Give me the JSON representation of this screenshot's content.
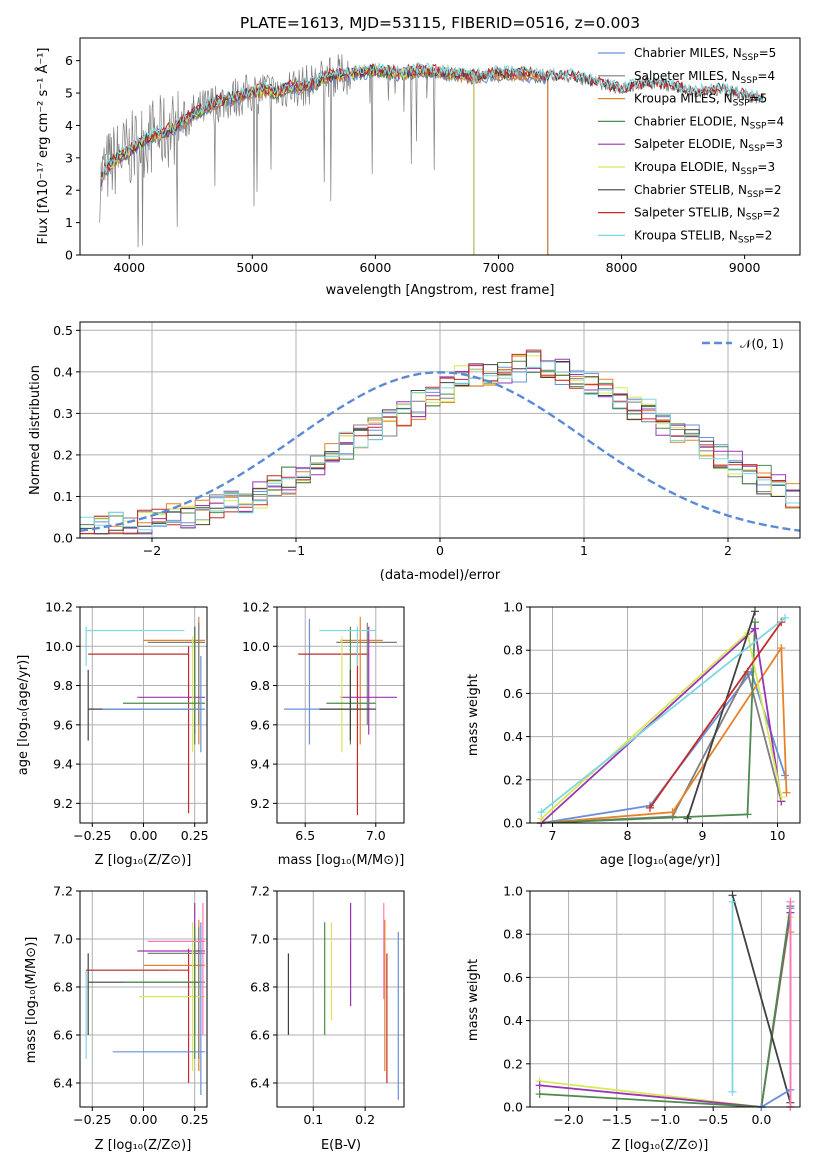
{
  "title": "PLATE=1613, MJD=53115, FIBERID=0516, z=0.003",
  "colors": [
    "#6a8fdb",
    "#7f7f7f",
    "#e8822a",
    "#4d8a4d",
    "#9b35b5",
    "#d8e85a",
    "#404040",
    "#c62a2a",
    "#7fd7e0"
  ],
  "spectrum": {
    "ylabel": "Flux [fλ10⁻¹⁷ erg cm⁻² s⁻¹ Å⁻¹]",
    "xlabel": "wavelength [Angstrom, rest frame]",
    "xlim": [
      3600,
      9450
    ],
    "ylim": [
      0,
      6.7
    ],
    "xticks": [
      "4000",
      "5000",
      "6000",
      "7000",
      "8000",
      "9000"
    ],
    "yticks": [
      "0",
      "1",
      "2",
      "3",
      "4",
      "5",
      "6"
    ],
    "legend": [
      "Chabrier MILES, N_SSP=5",
      "Salpeter MILES, N_SSP=4",
      "Kroupa MILES, N_SSP=5",
      "Chabrier ELODIE, N_SSP=4",
      "Salpeter ELODIE, N_SSP=3",
      "Kroupa ELODIE, N_SSP=3",
      "Chabrier STELIB, N_SSP=2",
      "Salpeter STELIB, N_SSP=2",
      "Kroupa STELIB, N_SSP=2"
    ]
  },
  "residuals": {
    "xlabel": "(data-model)/error",
    "ylabel": "Normed distribution",
    "legend": "𝒩(0, 1)",
    "xlim": [
      -2.5,
      2.5
    ],
    "ylim": [
      0,
      0.52
    ],
    "xticks": [
      "−2",
      "−1",
      "0",
      "1",
      "2"
    ],
    "yticks": [
      "0.0",
      "0.1",
      "0.2",
      "0.3",
      "0.4",
      "0.5"
    ]
  },
  "panels": {
    "age_vs_Z": {
      "xlabel": "Z [log₁₀(Z/Z⊙)]",
      "ylabel": "age [log₁₀(age/yr)]",
      "xticks": [
        "−0.25",
        "0.00",
        "0.25"
      ],
      "yticks": [
        "9.2",
        "9.4",
        "9.6",
        "9.8",
        "10.0",
        "10.2"
      ]
    },
    "age_vs_mass": {
      "xlabel": "mass [log₁₀(M/M⊙)]",
      "xticks": [
        "6.5",
        "7.0"
      ],
      "yticks": [
        "9.2",
        "9.4",
        "9.6",
        "9.8",
        "10.0",
        "10.2"
      ]
    },
    "mw_vs_age": {
      "xlabel": "age [log₁₀(age/yr)]",
      "ylabel": "mass weight",
      "xticks": [
        "7",
        "8",
        "9",
        "10"
      ],
      "yticks": [
        "0.0",
        "0.2",
        "0.4",
        "0.6",
        "0.8",
        "1.0"
      ]
    },
    "mass_vs_Z": {
      "xlabel": "Z [log₁₀(Z/Z⊙)]",
      "ylabel": "mass [log₁₀(M/M⊙)]",
      "xticks": [
        "−0.25",
        "0.00",
        "0.25"
      ],
      "yticks": [
        "6.4",
        "6.6",
        "6.8",
        "7.0",
        "7.2"
      ]
    },
    "mass_vs_ebv": {
      "xlabel": "E(B-V)",
      "xticks": [
        "0.1",
        "0.2"
      ],
      "yticks": [
        "6.4",
        "6.6",
        "6.8",
        "7.0",
        "7.2"
      ]
    },
    "mw_vs_Z": {
      "xlabel": "Z [log₁₀(Z/Z⊙)]",
      "ylabel": "mass weight",
      "xticks": [
        "−2.0",
        "−1.5",
        "−1.0",
        "−0.5",
        "0.0"
      ],
      "yticks": [
        "0.0",
        "0.2",
        "0.4",
        "0.6",
        "0.8",
        "1.0"
      ]
    }
  },
  "chart_data": [
    {
      "type": "line",
      "title": "PLATE=1613, MJD=53115, FIBERID=0516, z=0.003",
      "xlabel": "wavelength [Angstrom, rest frame]",
      "ylabel": "Flux [fλ10⁻¹⁷ erg cm⁻² s⁻¹ Å⁻¹]",
      "xlim": [
        3600,
        9450
      ],
      "ylim": [
        0,
        6.7
      ],
      "legend_position": "right",
      "continuum": {
        "x": [
          3760,
          3800,
          3900,
          4000,
          4100,
          4200,
          4300,
          4400,
          4500,
          4600,
          4700,
          4800,
          4900,
          5000,
          5100,
          5200,
          5300,
          5400,
          5500,
          5600,
          5800,
          6000,
          6200,
          6400,
          6600,
          6800,
          7000,
          7200,
          7400,
          7600,
          7800,
          8000,
          8200,
          8400,
          8600,
          8800,
          9000,
          9150
        ],
        "y": [
          2.2,
          2.6,
          3.0,
          3.2,
          3.5,
          3.7,
          3.8,
          4.0,
          4.3,
          4.5,
          4.7,
          4.8,
          4.9,
          5.0,
          5.1,
          5.0,
          5.2,
          5.2,
          5.3,
          5.5,
          5.6,
          5.7,
          5.6,
          5.7,
          5.6,
          5.5,
          5.6,
          5.6,
          5.5,
          5.5,
          5.3,
          5.1,
          5.3,
          5.2,
          5.0,
          5.1,
          4.9,
          4.8
        ]
      },
      "series": [
        {
          "name": "Chabrier MILES, N_SSP=5",
          "color": "#6a8fdb",
          "xmax": 7400
        },
        {
          "name": "Salpeter MILES, N_SSP=4",
          "color": "#7f7f7f",
          "xmax": 7400
        },
        {
          "name": "Kroupa MILES, N_SSP=5",
          "color": "#e8822a",
          "xmax": 7400
        },
        {
          "name": "Chabrier ELODIE, N_SSP=4",
          "color": "#4d8a4d",
          "xmax": 6800
        },
        {
          "name": "Salpeter ELODIE, N_SSP=3",
          "color": "#9b35b5",
          "xmax": 6800
        },
        {
          "name": "Kroupa ELODIE, N_SSP=3",
          "color": "#d8e85a",
          "xmax": 6800
        },
        {
          "name": "Chabrier STELIB, N_SSP=2",
          "color": "#404040",
          "xmax": 9150
        },
        {
          "name": "Salpeter STELIB, N_SSP=2",
          "color": "#c62a2a",
          "xmax": 9150
        },
        {
          "name": "Kroupa STELIB, N_SSP=2",
          "color": "#7fd7e0",
          "xmax": 9150
        }
      ]
    },
    {
      "type": "line",
      "xlabel": "(data-model)/error",
      "ylabel": "Normed distribution",
      "xlim": [
        -2.5,
        2.5
      ],
      "ylim": [
        0,
        0.52
      ],
      "bin_width": 0.1,
      "gaussian": {
        "name": "𝒩(0, 1)",
        "mean": 0,
        "sigma": 1,
        "color": "#5b8bd6"
      },
      "hist_base": [
        0.02,
        0.02,
        0.025,
        0.03,
        0.035,
        0.04,
        0.045,
        0.05,
        0.055,
        0.06,
        0.07,
        0.08,
        0.09,
        0.1,
        0.12,
        0.14,
        0.16,
        0.18,
        0.2,
        0.22,
        0.24,
        0.26,
        0.28,
        0.3,
        0.32,
        0.34,
        0.36,
        0.38,
        0.39,
        0.4,
        0.4,
        0.41,
        0.42,
        0.41,
        0.4,
        0.39,
        0.38,
        0.36,
        0.34,
        0.32,
        0.3,
        0.28,
        0.26,
        0.24,
        0.22,
        0.2,
        0.18,
        0.16,
        0.14,
        0.12,
        0.1,
        0.09,
        0.08,
        0.07,
        0.06,
        0.055,
        0.05,
        0.045,
        0.04,
        0.035,
        0.03,
        0.025,
        0.02
      ],
      "hist_start": -2.6
    },
    {
      "type": "scatter",
      "xlabel": "Z [log₁₀(Z/Z⊙)]",
      "ylabel": "age [log₁₀(age/yr)]",
      "xlim": [
        -0.31,
        0.31
      ],
      "ylim": [
        9.1,
        10.2
      ],
      "errorbars": [
        {
          "color": "#7fd7e0",
          "x": -0.28,
          "y": 10.08,
          "xlo": -0.28,
          "xhi": 0.2,
          "ylo": 9.9,
          "yhi": 10.1
        },
        {
          "color": "#404040",
          "x": -0.27,
          "y": 9.68,
          "xlo": -0.27,
          "xhi": 0.27,
          "ylo": 9.52,
          "yhi": 9.88
        },
        {
          "color": "#c62a2a",
          "x": 0.22,
          "y": 9.96,
          "xlo": -0.27,
          "xhi": 0.22,
          "ylo": 9.15,
          "yhi": 10.0
        },
        {
          "color": "#e8822a",
          "x": 0.27,
          "y": 10.03,
          "xlo": 0.0,
          "xhi": 0.3,
          "ylo": 9.5,
          "yhi": 10.15
        },
        {
          "color": "#7f7f7f",
          "x": 0.27,
          "y": 10.02,
          "xlo": 0.02,
          "xhi": 0.3,
          "ylo": 9.6,
          "yhi": 10.12
        },
        {
          "color": "#9b35b5",
          "x": 0.25,
          "y": 9.74,
          "xlo": -0.03,
          "xhi": 0.3,
          "ylo": 9.55,
          "yhi": 10.1
        },
        {
          "color": "#d8e85a",
          "x": 0.24,
          "y": 9.68,
          "xlo": -0.02,
          "xhi": 0.3,
          "ylo": 9.46,
          "yhi": 10.05
        },
        {
          "color": "#4d8a4d",
          "x": 0.25,
          "y": 9.71,
          "xlo": -0.1,
          "xhi": 0.3,
          "ylo": 9.5,
          "yhi": 10.1
        },
        {
          "color": "#6a8fdb",
          "x": 0.28,
          "y": 9.68,
          "xlo": -0.2,
          "xhi": 0.3,
          "ylo": 9.46,
          "yhi": 9.95
        }
      ]
    },
    {
      "type": "scatter",
      "xlabel": "mass [log₁₀(M/M⊙)]",
      "xlim": [
        6.3,
        7.2
      ],
      "ylim": [
        9.1,
        10.2
      ],
      "errorbars": [
        {
          "color": "#6a8fdb",
          "x": 6.53,
          "y": 9.68,
          "xlo": 6.35,
          "xhi": 6.8,
          "ylo": 9.5,
          "yhi": 10.14
        },
        {
          "color": "#c62a2a",
          "x": 6.87,
          "y": 9.96,
          "xlo": 6.45,
          "xhi": 6.95,
          "ylo": 9.14,
          "yhi": 10.0
        },
        {
          "color": "#e8822a",
          "x": 6.89,
          "y": 10.03,
          "xlo": 6.75,
          "xhi": 7.05,
          "ylo": 9.5,
          "yhi": 10.15
        },
        {
          "color": "#7f7f7f",
          "x": 6.94,
          "y": 10.02,
          "xlo": 6.72,
          "xhi": 7.15,
          "ylo": 9.6,
          "yhi": 10.12
        },
        {
          "color": "#9b35b5",
          "x": 6.95,
          "y": 9.74,
          "xlo": 6.75,
          "xhi": 7.15,
          "ylo": 9.55,
          "yhi": 10.1
        },
        {
          "color": "#d8e85a",
          "x": 6.76,
          "y": 9.68,
          "xlo": 6.65,
          "xhi": 6.95,
          "ylo": 9.46,
          "yhi": 10.05
        },
        {
          "color": "#4d8a4d",
          "x": 6.82,
          "y": 9.71,
          "xlo": 6.65,
          "xhi": 7.0,
          "ylo": 9.5,
          "yhi": 10.1
        },
        {
          "color": "#404040",
          "x": 6.82,
          "y": 9.68,
          "xlo": 6.6,
          "xhi": 7.0,
          "ylo": 9.52,
          "yhi": 9.88
        },
        {
          "color": "#7fd7e0",
          "x": 6.87,
          "y": 10.08,
          "xlo": 6.6,
          "xhi": 7.0,
          "ylo": 9.9,
          "yhi": 10.1
        }
      ]
    },
    {
      "type": "line",
      "xlabel": "age [log₁₀(age/yr)]",
      "ylabel": "mass weight",
      "xlim": [
        6.7,
        10.3
      ],
      "ylim": [
        0,
        1.0
      ],
      "series": [
        {
          "color": "#6a8fdb",
          "x": [
            6.85,
            8.3,
            9.65,
            10.1
          ],
          "y": [
            0.0,
            0.08,
            0.7,
            0.22
          ]
        },
        {
          "color": "#7f7f7f",
          "x": [
            6.85,
            8.6,
            9.6,
            10.05
          ],
          "y": [
            0.0,
            0.03,
            0.7,
            0.1
          ]
        },
        {
          "color": "#e8822a",
          "x": [
            6.85,
            8.6,
            10.05,
            10.12
          ],
          "y": [
            0.0,
            0.05,
            0.81,
            0.14
          ]
        },
        {
          "color": "#4d8a4d",
          "x": [
            6.85,
            9.6,
            9.7
          ],
          "y": [
            0.0,
            0.04,
            0.93
          ]
        },
        {
          "color": "#9b35b5",
          "x": [
            6.85,
            9.7,
            10.05
          ],
          "y": [
            0.0,
            0.9,
            0.1
          ]
        },
        {
          "color": "#d8e85a",
          "x": [
            6.85,
            9.6,
            10.05
          ],
          "y": [
            0.02,
            0.88,
            0.12
          ]
        },
        {
          "color": "#404040",
          "x": [
            8.8,
            9.7
          ],
          "y": [
            0.02,
            0.98
          ]
        },
        {
          "color": "#c62a2a",
          "x": [
            8.3,
            10.05
          ],
          "y": [
            0.07,
            0.93
          ]
        },
        {
          "color": "#7fd7e0",
          "x": [
            6.85,
            10.1
          ],
          "y": [
            0.05,
            0.95
          ]
        }
      ]
    },
    {
      "type": "scatter",
      "xlabel": "Z [log₁₀(Z/Z⊙)]",
      "ylabel": "mass [log₁₀(M/M⊙)]",
      "xlim": [
        -0.31,
        0.31
      ],
      "ylim": [
        6.3,
        7.2
      ],
      "errorbars": [
        {
          "color": "#7fd7e0",
          "x": -0.28,
          "y": 6.87,
          "xlo": -0.28,
          "xhi": 0.12,
          "ylo": 6.5,
          "yhi": 6.87
        },
        {
          "color": "#404040",
          "x": -0.27,
          "y": 6.82,
          "xlo": -0.27,
          "xhi": 0.27,
          "ylo": 6.6,
          "yhi": 6.94
        },
        {
          "color": "#c62a2a",
          "x": 0.22,
          "y": 6.87,
          "xlo": -0.28,
          "xhi": 0.22,
          "ylo": 6.4,
          "yhi": 6.96
        },
        {
          "color": "#e8822a",
          "x": 0.27,
          "y": 6.89,
          "xlo": 0.0,
          "xhi": 0.3,
          "ylo": 6.45,
          "yhi": 7.08
        },
        {
          "color": "#7f7f7f",
          "x": 0.27,
          "y": 6.94,
          "xlo": 0.02,
          "xhi": 0.3,
          "ylo": 6.5,
          "yhi": 7.05
        },
        {
          "color": "#9b35b5",
          "x": 0.25,
          "y": 6.95,
          "xlo": -0.03,
          "xhi": 0.3,
          "ylo": 6.6,
          "yhi": 7.15
        },
        {
          "color": "#d8e85a",
          "x": 0.24,
          "y": 6.76,
          "xlo": -0.02,
          "xhi": 0.3,
          "ylo": 6.45,
          "yhi": 7.07
        },
        {
          "color": "#4d8a4d",
          "x": 0.25,
          "y": 6.82,
          "xlo": -0.1,
          "xhi": 0.3,
          "ylo": 6.5,
          "yhi": 7.05
        },
        {
          "color": "#6a8fdb",
          "x": 0.28,
          "y": 6.53,
          "xlo": -0.15,
          "xhi": 0.3,
          "ylo": 6.35,
          "yhi": 7.07
        },
        {
          "color": "#ff77c0",
          "x": 0.29,
          "y": 6.99,
          "xlo": 0.02,
          "xhi": 0.3,
          "ylo": 6.6,
          "yhi": 7.15
        }
      ]
    },
    {
      "type": "scatter",
      "xlabel": "E(B-V)",
      "xlim": [
        0.03,
        0.275
      ],
      "ylim": [
        6.3,
        7.2
      ],
      "errorbars": [
        {
          "color": "#404040",
          "x": 0.052,
          "ylo": 6.6,
          "yhi": 6.94
        },
        {
          "color": "#4d8a4d",
          "x": 0.122,
          "ylo": 6.6,
          "yhi": 7.07
        },
        {
          "color": "#d8e85a",
          "x": 0.135,
          "ylo": 6.66,
          "yhi": 7.07
        },
        {
          "color": "#9b35b5",
          "x": 0.172,
          "ylo": 6.72,
          "yhi": 7.15
        },
        {
          "color": "#ff77c0",
          "x": 0.236,
          "ylo": 6.75,
          "yhi": 7.15
        },
        {
          "color": "#e8822a",
          "x": 0.238,
          "ylo": 6.45,
          "yhi": 7.08
        },
        {
          "color": "#c62a2a",
          "x": 0.242,
          "ylo": 6.4,
          "yhi": 6.94
        },
        {
          "color": "#6a8fdb",
          "x": 0.264,
          "ylo": 6.33,
          "yhi": 7.03
        }
      ]
    },
    {
      "type": "line",
      "xlabel": "Z [log₁₀(Z/Z⊙)]",
      "ylabel": "mass weight",
      "xlim": [
        -2.4,
        0.4
      ],
      "ylim": [
        0,
        1.0
      ],
      "series": [
        {
          "color": "#d8e85a",
          "x": [
            -2.3,
            0.0,
            0.3
          ],
          "y": [
            0.12,
            0.0,
            0.88
          ]
        },
        {
          "color": "#9b35b5",
          "x": [
            -2.3,
            0.0,
            0.3
          ],
          "y": [
            0.1,
            0.0,
            0.9
          ]
        },
        {
          "color": "#4d8a4d",
          "x": [
            -2.3,
            0.0,
            0.3
          ],
          "y": [
            0.06,
            0.0,
            0.93
          ]
        },
        {
          "color": "#404040",
          "x": [
            -0.3,
            0.3
          ],
          "y": [
            0.98,
            0.02
          ]
        },
        {
          "color": "#7fd7e0",
          "x": [
            -0.3,
            -0.3
          ],
          "y": [
            0.07,
            0.95
          ]
        },
        {
          "color": "#6a8fdb",
          "x": [
            0.0,
            0.3,
            0.3
          ],
          "y": [
            0.0,
            0.08,
            0.92
          ]
        },
        {
          "color": "#e8822a",
          "x": [
            0.3,
            0.3
          ],
          "y": [
            0.0,
            0.81
          ]
        },
        {
          "color": "#ff77c0",
          "x": [
            0.3,
            0.3
          ],
          "y": [
            0.0,
            0.95
          ]
        }
      ]
    }
  ]
}
